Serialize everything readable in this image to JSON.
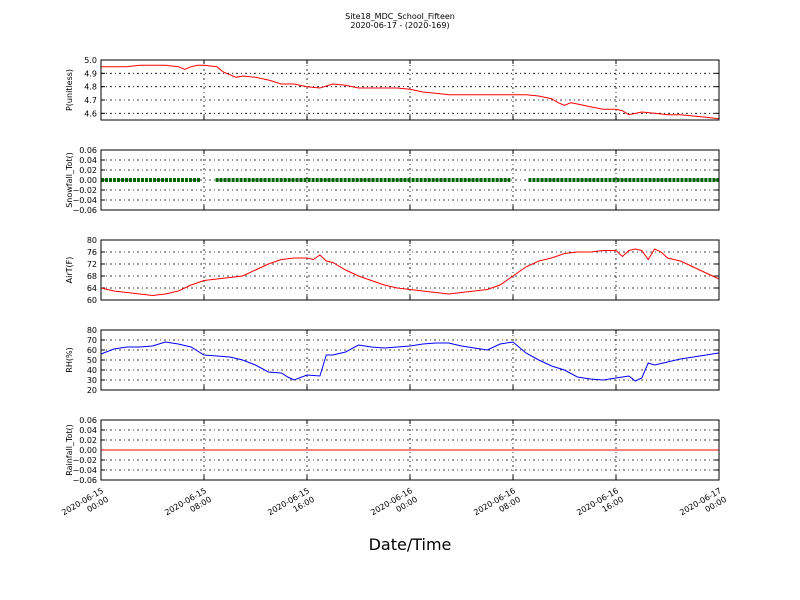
{
  "chart_data": {
    "type": "line",
    "title": "Site18_MDC_School_Fifteen",
    "subtitle": "2020-06-17 - (2020-169)",
    "xlabel": "Date/Time",
    "x_range_hours": [
      0,
      48
    ],
    "x_ticks": [
      {
        "hour": 0,
        "line1": "2020-06-15",
        "line2": "00:00"
      },
      {
        "hour": 8,
        "line1": "2020-06-15",
        "line2": "08:00"
      },
      {
        "hour": 16,
        "line1": "2020-06-15",
        "line2": "16:00"
      },
      {
        "hour": 24,
        "line1": "2020-06-16",
        "line2": "00:00"
      },
      {
        "hour": 32,
        "line1": "2020-06-16",
        "line2": "08:00"
      },
      {
        "hour": 40,
        "line1": "2020-06-16",
        "line2": "16:00"
      },
      {
        "hour": 48,
        "line1": "2020-06-17",
        "line2": "00:00"
      }
    ],
    "grid": true,
    "panels": [
      {
        "name": "pressure",
        "ylabel": "P(unitless)",
        "ylim": [
          4.55,
          5.0
        ],
        "yticks": [
          "4.6",
          "4.7",
          "4.8",
          "4.9",
          "5.0"
        ],
        "ytick_values": [
          4.6,
          4.7,
          4.8,
          4.9,
          5.0
        ],
        "color": "#ff0000",
        "style": "line",
        "x": [
          0,
          1,
          2,
          3,
          4,
          5,
          6,
          6.5,
          7,
          7.5,
          8,
          9,
          9.5,
          10,
          10.5,
          11,
          12,
          13,
          14,
          15,
          16,
          17,
          18,
          19,
          20,
          21,
          22,
          23,
          24,
          25,
          26,
          27,
          28,
          29,
          30,
          31,
          32,
          33,
          34,
          35,
          35.5,
          36,
          36.5,
          37,
          38,
          39,
          40,
          40.5,
          41,
          42,
          43,
          44,
          45,
          46,
          47,
          48
        ],
        "y": [
          4.95,
          4.95,
          4.95,
          4.96,
          4.96,
          4.96,
          4.95,
          4.93,
          4.95,
          4.96,
          4.96,
          4.95,
          4.91,
          4.89,
          4.87,
          4.88,
          4.87,
          4.85,
          4.82,
          4.82,
          4.8,
          4.79,
          4.82,
          4.81,
          4.79,
          4.79,
          4.79,
          4.79,
          4.78,
          4.76,
          4.75,
          4.74,
          4.74,
          4.74,
          4.74,
          4.74,
          4.74,
          4.74,
          4.73,
          4.71,
          4.68,
          4.66,
          4.68,
          4.67,
          4.65,
          4.63,
          4.63,
          4.62,
          4.59,
          4.61,
          4.6,
          4.59,
          4.59,
          4.58,
          4.57,
          4.56
        ]
      },
      {
        "name": "snowfall",
        "ylabel": "Snowfall_Tot()",
        "ylim": [
          -0.06,
          0.06
        ],
        "yticks": [
          "−0.06",
          "−0.04",
          "−0.02",
          "0.00",
          "0.02",
          "0.04",
          "0.06"
        ],
        "ytick_values": [
          -0.06,
          -0.04,
          -0.02,
          0.0,
          0.02,
          0.04,
          0.06
        ],
        "color": "#006400",
        "style": "dots",
        "segments": [
          [
            0,
            7.7
          ],
          [
            8.9,
            31.8
          ],
          [
            33.2,
            48
          ]
        ],
        "value": 0.0
      },
      {
        "name": "air_temp",
        "ylabel": "AirT(F)",
        "ylim": [
          60,
          80
        ],
        "yticks": [
          "60",
          "64",
          "68",
          "72",
          "76",
          "80"
        ],
        "ytick_values": [
          60,
          64,
          68,
          72,
          76,
          80
        ],
        "color": "#ff0000",
        "style": "line",
        "x": [
          0,
          1,
          2,
          3,
          4,
          5,
          6,
          7,
          8,
          9,
          10,
          11,
          12,
          13,
          14,
          15,
          16,
          16.5,
          17,
          17.5,
          18,
          19,
          20,
          21,
          22,
          23,
          24,
          25,
          26,
          27,
          28,
          29,
          30,
          31,
          32,
          33,
          34,
          35,
          36,
          37,
          38,
          39,
          40,
          40.5,
          41,
          41.5,
          42,
          42.5,
          43,
          43.5,
          44,
          45,
          46,
          47,
          48
        ],
        "y": [
          64,
          63,
          62.5,
          62,
          61.5,
          62,
          63,
          65,
          66.5,
          67,
          67.5,
          68,
          70,
          72,
          73.5,
          74,
          74,
          73.5,
          75,
          73,
          72.5,
          70,
          68,
          66.5,
          65,
          64,
          63.5,
          63,
          62.5,
          62,
          62.5,
          63,
          63.5,
          65,
          68,
          71,
          73,
          74,
          75.5,
          76,
          76,
          76.5,
          76.5,
          74.5,
          76.5,
          77,
          76.5,
          73.5,
          77,
          76,
          74,
          73,
          71,
          69,
          67
        ]
      },
      {
        "name": "rh",
        "ylabel": "RH(%)",
        "ylim": [
          20,
          80
        ],
        "yticks": [
          "20",
          "30",
          "40",
          "50",
          "60",
          "70",
          "80"
        ],
        "ytick_values": [
          20,
          30,
          40,
          50,
          60,
          70,
          80
        ],
        "color": "#0000ff",
        "style": "line",
        "x": [
          0,
          1,
          2,
          3,
          4,
          5,
          6,
          7,
          8,
          9,
          10,
          11,
          12,
          13,
          14,
          14.5,
          15,
          16,
          17,
          17.5,
          18,
          19,
          20,
          21,
          22,
          23,
          24,
          25,
          26,
          27,
          28,
          29,
          30,
          31,
          32,
          33,
          34,
          35,
          36,
          37,
          38,
          39,
          40,
          40.5,
          41,
          41.5,
          42,
          42.5,
          43,
          44,
          45,
          46,
          47,
          48
        ],
        "y": [
          56,
          61,
          63,
          63,
          64,
          68,
          66,
          63,
          55,
          54,
          53,
          50,
          45,
          38,
          37,
          33,
          30,
          35,
          34,
          55,
          55,
          58,
          65,
          63,
          62,
          63,
          64,
          66,
          67,
          67,
          64,
          62,
          60,
          66,
          68,
          57,
          50,
          44,
          40,
          33,
          31,
          30,
          32,
          33,
          34,
          29,
          32,
          47,
          45,
          48,
          51,
          53,
          55,
          57
        ]
      },
      {
        "name": "rainfall",
        "ylabel": "Rainfall_Tot()",
        "ylim": [
          -0.06,
          0.06
        ],
        "yticks": [
          "−0.06",
          "−0.04",
          "−0.02",
          "0.00",
          "0.02",
          "0.04",
          "0.06"
        ],
        "ytick_values": [
          -0.06,
          -0.04,
          -0.02,
          0.0,
          0.02,
          0.04,
          0.06
        ],
        "color": "#ff0000",
        "style": "line",
        "x": [
          0,
          48
        ],
        "y": [
          0.0,
          0.0
        ]
      }
    ]
  }
}
